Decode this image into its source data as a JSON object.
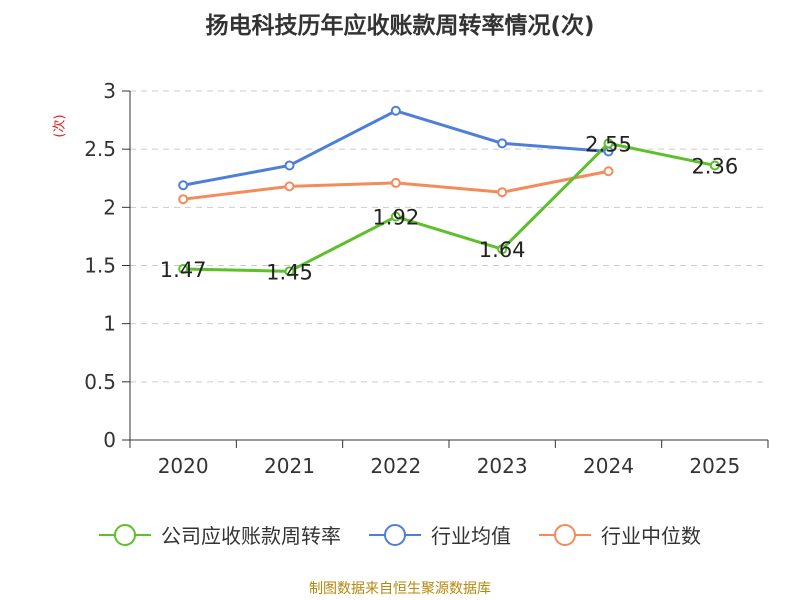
{
  "chart_data": {
    "type": "line",
    "title": "扬电科技历年应收账款周转率情况(次)",
    "ylabel": "(次)",
    "xlabel": "",
    "categories": [
      "2020",
      "2021",
      "2022",
      "2023",
      "2024",
      "2025"
    ],
    "ylim": [
      0,
      3
    ],
    "yticks": [
      "0",
      "0.5",
      "1",
      "1.5",
      "2",
      "2.5",
      "3"
    ],
    "ytick_values": [
      0,
      0.5,
      1,
      1.5,
      2,
      2.5,
      3
    ],
    "grid": true,
    "legend_position": "bottom",
    "series": [
      {
        "name": "公司应收账款周转率",
        "color": "#5cc02a",
        "values": [
          1.47,
          1.45,
          1.92,
          1.64,
          2.55,
          2.36
        ],
        "labels": [
          "1.47",
          "1.45",
          "1.92",
          "1.64",
          "2.55",
          "2.36"
        ]
      },
      {
        "name": "行业均值",
        "color": "#4e7fd6",
        "values": [
          2.19,
          2.36,
          2.83,
          2.55,
          2.48,
          null
        ]
      },
      {
        "name": "行业中位数",
        "color": "#f58a5a",
        "values": [
          2.07,
          2.18,
          2.21,
          2.13,
          2.31,
          null
        ]
      }
    ]
  },
  "source": "制图数据来自恒生聚源数据库"
}
